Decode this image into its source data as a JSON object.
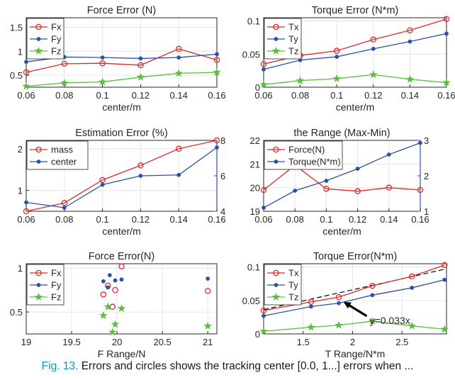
{
  "colors": {
    "red": "#dc2b2b",
    "blue": "#2a52a8",
    "green": "#5cbf3c",
    "accent": "#00a0b0"
  },
  "caption": {
    "label": "Fig. 13.",
    "text": "Errors and circles shows the tracking center [0.0, 1...] errors when ..."
  },
  "chart_data": [
    {
      "type": "line",
      "title": "Force Error (N)",
      "xlabel": "center/m",
      "ylabel": "",
      "xlim": [
        0.06,
        0.16
      ],
      "ylim": [
        0.25,
        1.7
      ],
      "xticks": [
        0.06,
        0.08,
        0.1,
        0.12,
        0.14,
        0.16
      ],
      "xtick_labels": [
        "0.06",
        "0.08",
        "0.1",
        "0.12",
        "0.14",
        "0.16"
      ],
      "yticks": [
        0.5,
        1,
        1.5
      ],
      "ytick_labels": [
        "0.5",
        "1",
        "1.5"
      ],
      "grid": true,
      "legend": "top-left",
      "x": [
        0.06,
        0.08,
        0.1,
        0.12,
        0.14,
        0.16
      ],
      "series": [
        {
          "name": "Fx",
          "color": "red",
          "marker": "circle",
          "values": [
            0.56,
            0.74,
            0.75,
            0.71,
            1.05,
            0.82
          ]
        },
        {
          "name": "Fy",
          "color": "blue",
          "marker": "dot",
          "values": [
            0.78,
            0.88,
            0.87,
            0.85,
            0.87,
            0.94
          ]
        },
        {
          "name": "Fz",
          "color": "green",
          "marker": "star",
          "values": [
            0.27,
            0.34,
            0.36,
            0.46,
            0.54,
            0.56
          ]
        }
      ]
    },
    {
      "type": "line",
      "title": "Torque Error (N*m)",
      "xlabel": "center/m",
      "ylabel": "",
      "xlim": [
        0.06,
        0.16
      ],
      "ylim": [
        0,
        0.105
      ],
      "xticks": [
        0.06,
        0.08,
        0.1,
        0.12,
        0.14,
        0.16
      ],
      "xtick_labels": [
        "0.06",
        "0.08",
        "0.1",
        "0.12",
        "0.14",
        "0.16"
      ],
      "yticks": [
        0,
        0.05,
        0.1
      ],
      "ytick_labels": [
        "0",
        "0.05",
        "0.1"
      ],
      "grid": true,
      "legend": "top-left",
      "x": [
        0.06,
        0.08,
        0.1,
        0.12,
        0.14,
        0.16
      ],
      "series": [
        {
          "name": "Tx",
          "color": "red",
          "marker": "circle",
          "values": [
            0.035,
            0.048,
            0.055,
            0.072,
            0.086,
            0.103
          ]
        },
        {
          "name": "Ty",
          "color": "blue",
          "marker": "dot",
          "values": [
            0.027,
            0.041,
            0.046,
            0.058,
            0.069,
            0.081
          ]
        },
        {
          "name": "Tz",
          "color": "green",
          "marker": "star",
          "values": [
            0.004,
            0.01,
            0.013,
            0.019,
            0.012,
            0.007
          ]
        }
      ]
    },
    {
      "type": "line",
      "title": "Estimation Error (%)",
      "xlabel": "center/m",
      "ylabel": "",
      "xlim": [
        0.06,
        0.16
      ],
      "ylim": [
        0.5,
        2.2
      ],
      "y2lim": [
        4,
        8
      ],
      "xticks": [
        0.06,
        0.08,
        0.1,
        0.12,
        0.14,
        0.16
      ],
      "xtick_labels": [
        "0.06",
        "0.08",
        "0.1",
        "0.12",
        "0.14",
        "0.16"
      ],
      "yticks": [
        1,
        2
      ],
      "ytick_labels": [
        "1",
        "2"
      ],
      "y2ticks": [
        4,
        6,
        8
      ],
      "y2tick_labels": [
        "4",
        "6",
        "8"
      ],
      "grid": true,
      "legend": "top-left",
      "x": [
        0.06,
        0.08,
        0.1,
        0.12,
        0.14,
        0.16
      ],
      "series": [
        {
          "name": "mass",
          "color": "red",
          "marker": "circle",
          "axis": "left",
          "values": [
            0.5,
            0.7,
            1.25,
            1.6,
            2.0,
            2.2
          ]
        },
        {
          "name": "center",
          "color": "blue",
          "marker": "dot",
          "axis": "right",
          "values": [
            4.5,
            4.2,
            5.5,
            6.0,
            6.05,
            7.6
          ]
        }
      ]
    },
    {
      "type": "line",
      "title": "the Range (Max-Min)",
      "xlabel": "center/m",
      "ylabel": "",
      "xlim": [
        0.06,
        0.16
      ],
      "ylim": [
        19,
        22
      ],
      "y2lim": [
        1,
        3
      ],
      "xticks": [
        0.06,
        0.08,
        0.1,
        0.12,
        0.14,
        0.16
      ],
      "xtick_labels": [
        "0.06",
        "0.08",
        "0.1",
        "0.12",
        "0.14",
        "0.16"
      ],
      "yticks": [
        19,
        20,
        21,
        22
      ],
      "ytick_labels": [
        "19",
        "20",
        "21",
        "22"
      ],
      "y2ticks": [
        1,
        2,
        3
      ],
      "y2tick_labels": [
        "1",
        "2",
        "3"
      ],
      "grid": true,
      "legend": "top-left",
      "x": [
        0.06,
        0.08,
        0.1,
        0.12,
        0.14,
        0.16
      ],
      "series": [
        {
          "name": "Force(N)",
          "color": "red",
          "marker": "circle",
          "axis": "left",
          "values": [
            19.9,
            20.95,
            19.95,
            19.85,
            20.0,
            19.9
          ]
        },
        {
          "name": "Torque(N*m)",
          "color": "blue",
          "marker": "dot",
          "axis": "right",
          "values": [
            1.1,
            1.58,
            1.86,
            2.2,
            2.6,
            2.93
          ]
        }
      ]
    },
    {
      "type": "scatter",
      "title": "Force Error(N)",
      "xlabel": "F Range/N",
      "ylabel": "",
      "xlim": [
        19,
        21.1
      ],
      "ylim": [
        0.25,
        1.05
      ],
      "xticks": [
        19,
        19.5,
        20,
        20.5,
        21
      ],
      "xtick_labels": [
        "19",
        "19.5",
        "20",
        "20.5",
        "21"
      ],
      "yticks": [
        0.5,
        1
      ],
      "ytick_labels": [
        "0.5",
        "1"
      ],
      "grid": true,
      "legend": "top-left",
      "series": [
        {
          "name": "Fx",
          "color": "red",
          "marker": "circle",
          "points": [
            [
              19.85,
              0.7
            ],
            [
              19.9,
              0.8
            ],
            [
              19.95,
              0.56
            ],
            [
              19.98,
              0.75
            ],
            [
              20.05,
              1.02
            ],
            [
              21.0,
              0.74
            ]
          ]
        },
        {
          "name": "Fy",
          "color": "blue",
          "marker": "dot",
          "points": [
            [
              19.85,
              0.85
            ],
            [
              19.9,
              0.78
            ],
            [
              19.92,
              0.92
            ],
            [
              19.98,
              0.86
            ],
            [
              20.05,
              0.87
            ],
            [
              21.0,
              0.88
            ]
          ]
        },
        {
          "name": "Fz",
          "color": "green",
          "marker": "star",
          "points": [
            [
              19.85,
              0.46
            ],
            [
              19.9,
              0.56
            ],
            [
              19.95,
              0.27
            ],
            [
              19.98,
              0.36
            ],
            [
              20.05,
              0.54
            ],
            [
              21.0,
              0.34
            ]
          ]
        }
      ]
    },
    {
      "type": "line",
      "title": "Torque Error(N*m)",
      "xlabel": "T Range/N*m",
      "ylabel": "",
      "xlim": [
        1.1,
        2.95
      ],
      "ylim": [
        0,
        0.105
      ],
      "xticks": [
        1.5,
        2,
        2.5
      ],
      "xtick_labels": [
        "1.5",
        "2",
        "2.5"
      ],
      "yticks": [
        0,
        0.05,
        0.1
      ],
      "ytick_labels": [
        "0",
        "0.05",
        "0.1"
      ],
      "grid": true,
      "legend": "top-left",
      "x": [
        1.1,
        1.58,
        1.86,
        2.2,
        2.6,
        2.93
      ],
      "series": [
        {
          "name": "Tx",
          "color": "red",
          "marker": "circle",
          "values": [
            0.035,
            0.048,
            0.055,
            0.072,
            0.086,
            0.103
          ]
        },
        {
          "name": "Ty",
          "color": "blue",
          "marker": "dot",
          "values": [
            0.027,
            0.041,
            0.046,
            0.058,
            0.069,
            0.081
          ]
        },
        {
          "name": "Tz",
          "color": "green",
          "marker": "star",
          "values": [
            0.004,
            0.01,
            0.013,
            0.019,
            0.012,
            0.007
          ]
        }
      ],
      "fit_line": {
        "slope": 0.033,
        "x": [
          1.1,
          2.95
        ]
      },
      "annotation": {
        "text": "y=0.033x",
        "arrow_to": [
          1.9,
          0.05
        ]
      }
    }
  ]
}
